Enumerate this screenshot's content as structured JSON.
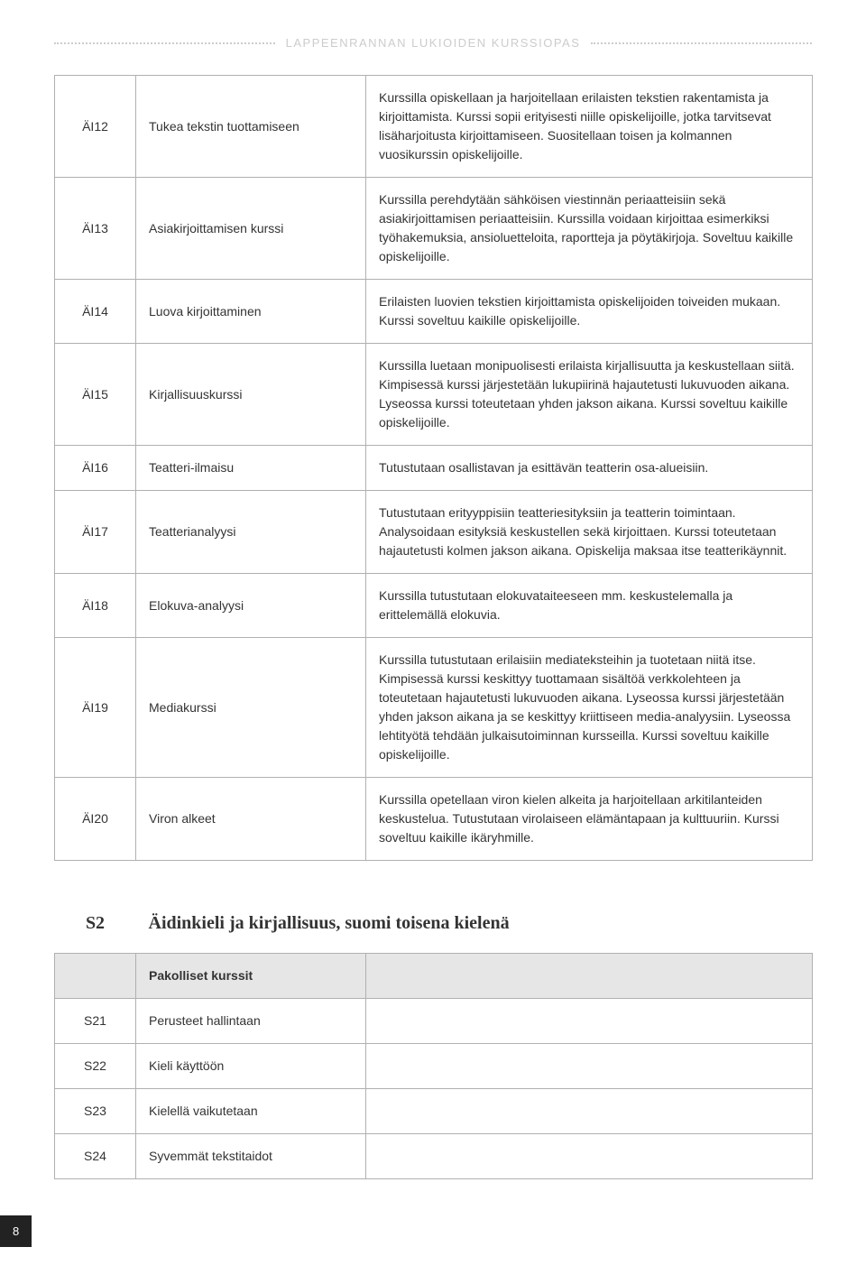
{
  "header": {
    "title": "LAPPEENRANNAN LUKIOIDEN KURSSIOPAS"
  },
  "courses": [
    {
      "code": "ÄI12",
      "name": "Tukea tekstin tuottamiseen",
      "desc": "Kurssilla opiskellaan ja harjoitellaan erilaisten tekstien rakentamista ja kirjoittamista. Kurssi sopii erityisesti niille opiskelijoille, jotka tarvitsevat lisäharjoitusta kirjoittamiseen. Suositellaan toisen ja kolmannen vuosikurssin opiskelijoille."
    },
    {
      "code": "ÄI13",
      "name": "Asiakirjoittamisen kurssi",
      "desc": "Kurssilla perehdytään sähköisen viestinnän periaatteisiin sekä asiakirjoittamisen periaatteisiin. Kurssilla voidaan kirjoittaa esimerkiksi työhakemuksia, ansioluetteloita, raportteja ja pöytäkirjoja. Soveltuu kaikille opiskelijoille."
    },
    {
      "code": "ÄI14",
      "name": "Luova kirjoittaminen",
      "desc": "Erilaisten luovien tekstien kirjoittamista opiskelijoiden toiveiden mukaan. Kurssi soveltuu kaikille opiskelijoille."
    },
    {
      "code": "ÄI15",
      "name": "Kirjallisuuskurssi",
      "desc": "Kurssilla luetaan monipuolisesti erilaista kirjallisuutta ja keskustellaan siitä. Kimpisessä kurssi järjestetään lukupiirinä hajautetusti lukuvuoden aikana. Lyseossa kurssi toteutetaan yhden jakson aikana. Kurssi soveltuu kaikille opiskelijoille."
    },
    {
      "code": "ÄI16",
      "name": "Teatteri-ilmaisu",
      "desc": "Tutustutaan osallistavan ja esittävän teatterin osa-alueisiin."
    },
    {
      "code": "ÄI17",
      "name": "Teatterianalyysi",
      "desc": "Tutustutaan erityyppisiin teatteriesityksiin ja teatterin toimintaan. Analysoidaan esityksiä keskustellen sekä kirjoittaen. Kurssi toteutetaan hajautetusti kolmen jakson aikana. Opiskelija maksaa itse teatterikäynnit."
    },
    {
      "code": "ÄI18",
      "name": "Elokuva-analyysi",
      "desc": "Kurssilla tutustutaan elokuvataiteeseen mm. keskustelemalla ja erittelemällä elokuvia."
    },
    {
      "code": "ÄI19",
      "name": "Mediakurssi",
      "desc": "Kurssilla tutustutaan erilaisiin mediateksteihin ja tuotetaan niitä itse. Kimpisessä kurssi keskittyy tuottamaan sisältöä verkkolehteen ja toteutetaan hajautetusti lukuvuoden aikana. Lyseossa kurssi järjestetään yhden jakson aikana ja se keskittyy kriittiseen media-analyysiin. Lyseossa lehtityötä tehdään julkaisutoiminnan kursseilla. Kurssi soveltuu kaikille opiskelijoille."
    },
    {
      "code": "ÄI20",
      "name": "Viron alkeet",
      "desc": "Kurssilla opetellaan viron kielen alkeita ja harjoitellaan arkitilanteiden keskustelua. Tutustutaan virolaiseen elämäntapaan ja kulttuuriin. Kurssi soveltuu kaikille ikäryhmille."
    }
  ],
  "section2": {
    "code": "S2",
    "title": "Äidinkieli ja kirjallisuus, suomi toisena kielenä",
    "subhead": "Pakolliset kurssit",
    "rows": [
      {
        "code": "S21",
        "name": "Perusteet hallintaan"
      },
      {
        "code": "S22",
        "name": "Kieli käyttöön"
      },
      {
        "code": "S23",
        "name": "Kielellä vaikutetaan"
      },
      {
        "code": "S24",
        "name": "Syvemmät tekstitaidot"
      }
    ]
  },
  "page_number": "8"
}
